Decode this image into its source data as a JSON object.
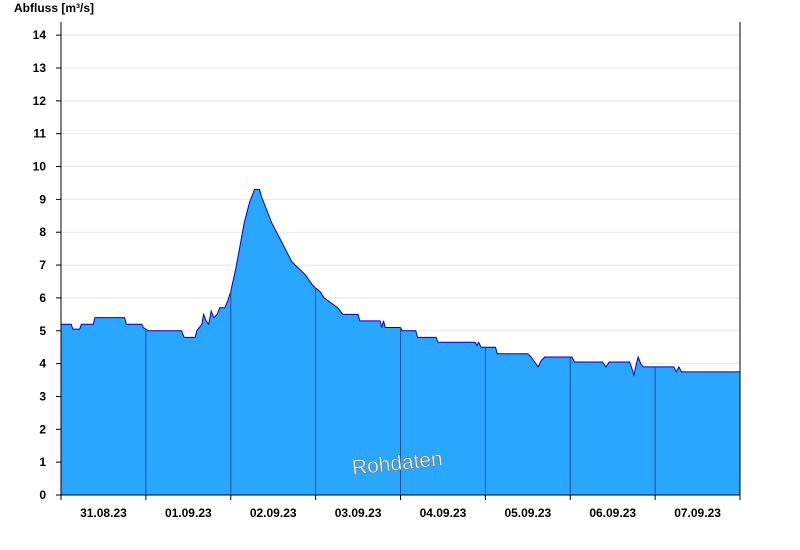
{
  "chart_data": {
    "type": "area",
    "ylabel": "Abfluss [m³/s]",
    "xlabel": "",
    "ylim": [
      0,
      14.4
    ],
    "yticks": [
      0,
      1,
      2,
      3,
      4,
      5,
      6,
      7,
      8,
      9,
      10,
      11,
      12,
      13,
      14
    ],
    "xlim": [
      0,
      8
    ],
    "x_unit": "days since 30.08.23 12:00",
    "day_labels": [
      "31.08.23",
      "01.09.23",
      "02.09.23",
      "03.09.23",
      "04.09.23",
      "05.09.23",
      "06.09.23",
      "07.09.23"
    ],
    "grid": {
      "horizontal": true,
      "vertical_day_separators": true
    },
    "colors": {
      "fill": "#29a7ff",
      "line": "#0000c8",
      "grid": "#e8e8e8"
    },
    "watermark": "Rohdaten",
    "series": [
      {
        "points": [
          [
            0.0,
            5.2
          ],
          [
            0.12,
            5.2
          ],
          [
            0.14,
            5.05
          ],
          [
            0.22,
            5.05
          ],
          [
            0.24,
            5.2
          ],
          [
            0.38,
            5.2
          ],
          [
            0.4,
            5.4
          ],
          [
            0.75,
            5.4
          ],
          [
            0.77,
            5.2
          ],
          [
            0.95,
            5.2
          ],
          [
            0.97,
            5.1
          ],
          [
            1.0,
            5.05
          ],
          [
            1.03,
            5.0
          ],
          [
            1.42,
            5.0
          ],
          [
            1.45,
            4.8
          ],
          [
            1.58,
            4.8
          ],
          [
            1.6,
            5.0
          ],
          [
            1.66,
            5.2
          ],
          [
            1.68,
            5.5
          ],
          [
            1.71,
            5.3
          ],
          [
            1.74,
            5.2
          ],
          [
            1.77,
            5.6
          ],
          [
            1.8,
            5.4
          ],
          [
            1.84,
            5.5
          ],
          [
            1.87,
            5.7
          ],
          [
            1.93,
            5.7
          ],
          [
            1.97,
            5.95
          ],
          [
            2.0,
            6.2
          ],
          [
            2.06,
            6.9
          ],
          [
            2.11,
            7.6
          ],
          [
            2.16,
            8.3
          ],
          [
            2.22,
            8.9
          ],
          [
            2.28,
            9.3
          ],
          [
            2.34,
            9.3
          ],
          [
            2.36,
            9.1
          ],
          [
            2.42,
            8.7
          ],
          [
            2.48,
            8.3
          ],
          [
            2.56,
            7.9
          ],
          [
            2.64,
            7.5
          ],
          [
            2.72,
            7.1
          ],
          [
            2.8,
            6.9
          ],
          [
            2.88,
            6.7
          ],
          [
            2.96,
            6.4
          ],
          [
            3.0,
            6.3
          ],
          [
            3.05,
            6.2
          ],
          [
            3.1,
            6.0
          ],
          [
            3.18,
            5.85
          ],
          [
            3.26,
            5.7
          ],
          [
            3.32,
            5.5
          ],
          [
            3.5,
            5.5
          ],
          [
            3.52,
            5.3
          ],
          [
            3.76,
            5.3
          ],
          [
            3.78,
            5.1
          ],
          [
            3.8,
            5.3
          ],
          [
            3.82,
            5.1
          ],
          [
            4.0,
            5.1
          ],
          [
            4.02,
            5.0
          ],
          [
            4.18,
            5.0
          ],
          [
            4.2,
            4.8
          ],
          [
            4.42,
            4.8
          ],
          [
            4.44,
            4.65
          ],
          [
            4.88,
            4.65
          ],
          [
            4.9,
            4.55
          ],
          [
            4.92,
            4.65
          ],
          [
            4.95,
            4.5
          ],
          [
            5.12,
            4.5
          ],
          [
            5.14,
            4.3
          ],
          [
            5.5,
            4.3
          ],
          [
            5.54,
            4.2
          ],
          [
            5.58,
            4.05
          ],
          [
            5.62,
            3.9
          ],
          [
            5.66,
            4.1
          ],
          [
            5.7,
            4.2
          ],
          [
            6.02,
            4.2
          ],
          [
            6.05,
            4.05
          ],
          [
            6.38,
            4.05
          ],
          [
            6.42,
            3.9
          ],
          [
            6.46,
            4.05
          ],
          [
            6.7,
            4.05
          ],
          [
            6.72,
            3.9
          ],
          [
            6.75,
            3.65
          ],
          [
            6.78,
            4.0
          ],
          [
            6.8,
            4.2
          ],
          [
            6.83,
            4.0
          ],
          [
            6.86,
            3.9
          ],
          [
            7.22,
            3.9
          ],
          [
            7.25,
            3.75
          ],
          [
            7.28,
            3.9
          ],
          [
            7.31,
            3.75
          ],
          [
            8.0,
            3.75
          ]
        ]
      }
    ]
  }
}
